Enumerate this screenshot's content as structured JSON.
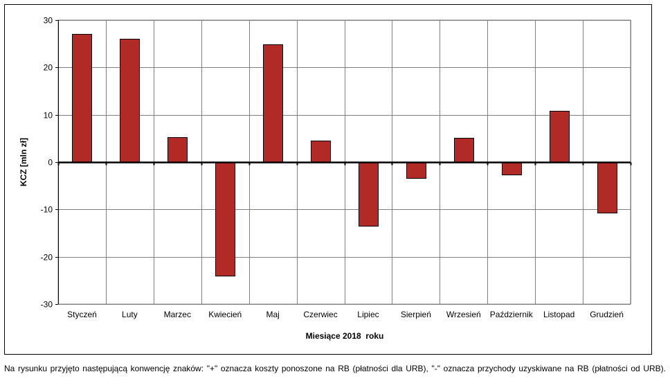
{
  "chart_data": {
    "type": "bar",
    "categories": [
      "Styczeń",
      "Luty",
      "Marzec",
      "Kwiecień",
      "Maj",
      "Czerwiec",
      "Lipiec",
      "Sierpień",
      "Wrzesień",
      "Październik",
      "Listopad",
      "Grudzień"
    ],
    "values": [
      27.1,
      26.1,
      5.3,
      -24.0,
      24.9,
      4.5,
      -13.5,
      -3.4,
      5.1,
      -2.7,
      10.9,
      -10.7
    ],
    "xlabel": "Miesiące 2018  roku",
    "ylabel": "KCZ [mln zł]",
    "ylim": [
      -30,
      30
    ],
    "yticks": [
      -30,
      -20,
      -10,
      0,
      10,
      20,
      30
    ],
    "grid": true,
    "bar_color": "#B22A26",
    "bar_edge_color": "#000000"
  },
  "footnote": "Na rysunku przyjęto następującą konwencję znaków: \"+\" oznacza koszty ponoszone na RB (płatności dla URB), \"-\" oznacza przychody uzyskiwane na RB (płatności od URB)."
}
